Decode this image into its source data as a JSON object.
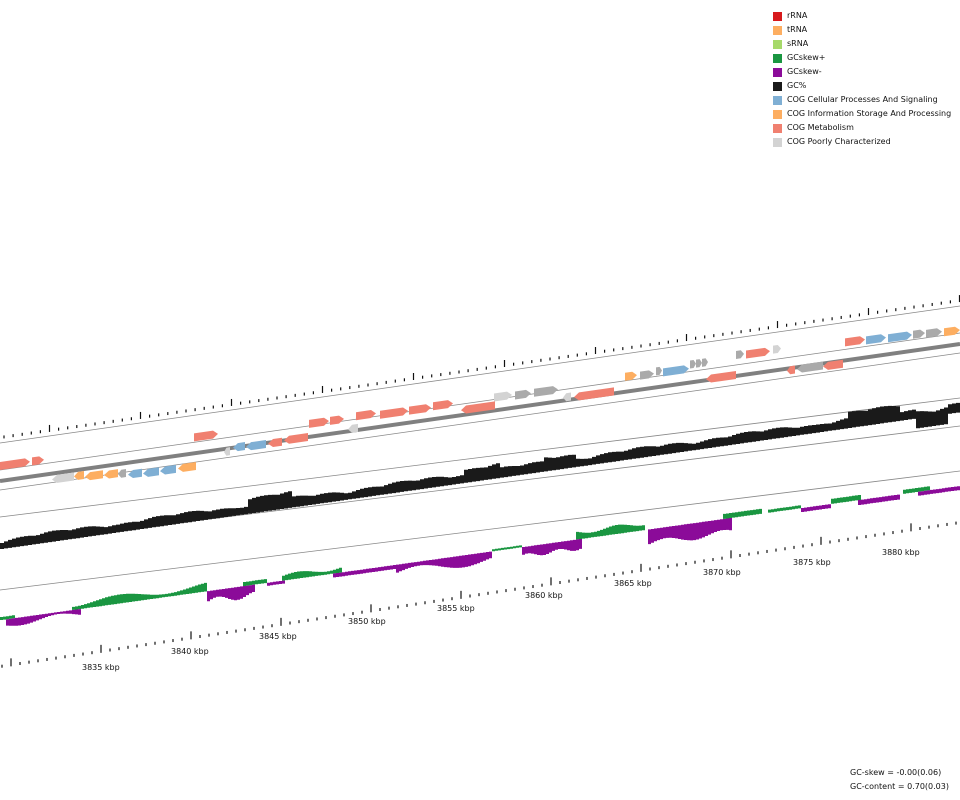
{
  "legend": [
    {
      "label": "rRNA",
      "color": "#d7191c"
    },
    {
      "label": "tRNA",
      "color": "#fdae61"
    },
    {
      "label": "sRNA",
      "color": "#a6d96a"
    },
    {
      "label": "GCskew+",
      "color": "#1a9641"
    },
    {
      "label": "GCskew-",
      "color": "#8b0b99"
    },
    {
      "label": "GC%",
      "color": "#1a1a1a"
    },
    {
      "label": "COG Cellular Processes And Signaling",
      "color": "#7fafd4"
    },
    {
      "label": "COG Information Storage And Processing",
      "color": "#fdae61"
    },
    {
      "label": "COG Metabolism",
      "color": "#f08070"
    },
    {
      "label": "COG Poorly Characterized",
      "color": "#d3d3d3"
    }
  ],
  "axis": {
    "ticks": [
      "3835 kbp",
      "3840 kbp",
      "3845 kbp",
      "3850 kbp",
      "3855 kbp",
      "3860 kbp",
      "3865 kbp",
      "3870 kbp",
      "3875 kbp",
      "3880 kbp"
    ]
  },
  "stats": {
    "gc_skew": "GC-skew = -0.00(0.06)",
    "gc_content": "GC-content = 0.70(0.03)"
  }
}
